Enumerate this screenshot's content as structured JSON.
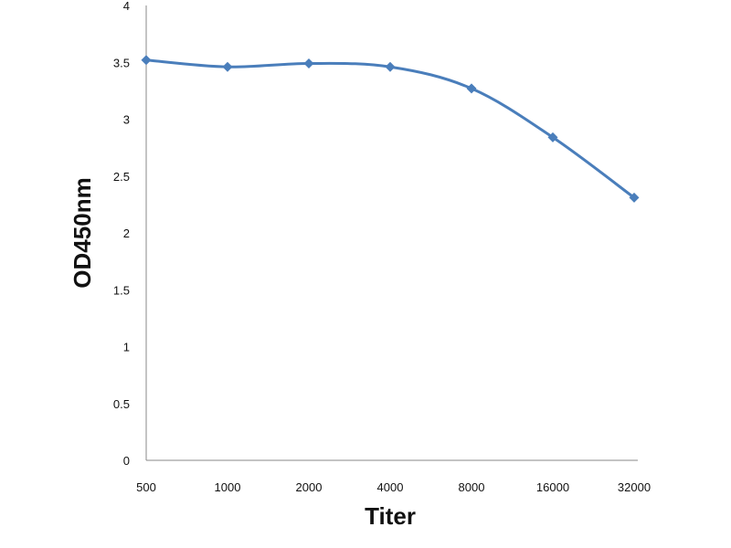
{
  "chart_data": {
    "type": "line",
    "title": "",
    "xlabel": "Titer",
    "ylabel": "OD450nm",
    "categories": [
      "500",
      "1000",
      "2000",
      "4000",
      "8000",
      "16000",
      "32000"
    ],
    "y_ticks": [
      "0",
      "0.5",
      "1",
      "1.5",
      "2",
      "2.5",
      "3",
      "3.5",
      "4"
    ],
    "ylim": [
      0,
      4
    ],
    "grid": false,
    "legend": "none",
    "marker": "diamond",
    "line_style": "smoothed",
    "series": [
      {
        "color": "#4A7EBB",
        "values": [
          3.52,
          3.46,
          3.49,
          3.46,
          3.27,
          2.84,
          2.31
        ]
      }
    ]
  }
}
